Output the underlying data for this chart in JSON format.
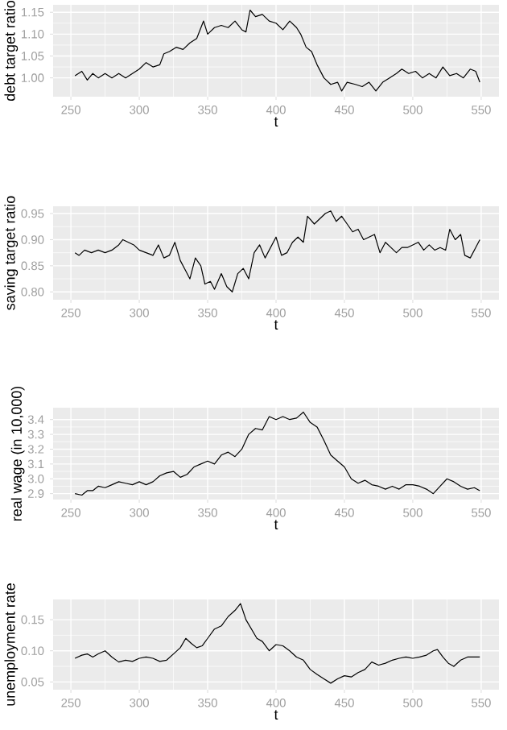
{
  "chart_data": [
    {
      "type": "line",
      "xlabel": "t",
      "ylabel": "debt target ratio",
      "grid": true,
      "marker": "none",
      "line_style": "solid",
      "xlim": [
        237,
        563
      ],
      "ylim": [
        0.957,
        1.167
      ],
      "xticks": [
        250,
        300,
        350,
        400,
        450,
        500,
        550
      ],
      "yticks": [
        {
          "value": 1.0,
          "label": "1.00"
        },
        1.05,
        {
          "value": 1.1,
          "label": "1.10"
        },
        1.15
      ],
      "series": [
        {
          "color": "#000000",
          "x": [
            253,
            258,
            262,
            266,
            270,
            275,
            280,
            285,
            290,
            295,
            300,
            305,
            310,
            315,
            318,
            322,
            327,
            332,
            337,
            342,
            347,
            350,
            355,
            360,
            365,
            370,
            375,
            378,
            381,
            385,
            390,
            395,
            400,
            405,
            410,
            415,
            418,
            422,
            426,
            430,
            435,
            440,
            445,
            448,
            452,
            458,
            463,
            468,
            473,
            478,
            483,
            488,
            492,
            497,
            502,
            507,
            512,
            517,
            522,
            527,
            532,
            537,
            542,
            546,
            549
          ],
          "values": [
            1.005,
            1.015,
            0.995,
            1.01,
            1.0,
            1.01,
            1.0,
            1.01,
            1.0,
            1.01,
            1.02,
            1.035,
            1.025,
            1.03,
            1.055,
            1.06,
            1.07,
            1.065,
            1.08,
            1.09,
            1.13,
            1.1,
            1.115,
            1.12,
            1.115,
            1.13,
            1.11,
            1.105,
            1.155,
            1.14,
            1.145,
            1.13,
            1.125,
            1.11,
            1.13,
            1.115,
            1.1,
            1.07,
            1.06,
            1.03,
            1.0,
            0.985,
            0.99,
            0.97,
            0.99,
            0.985,
            0.98,
            0.99,
            0.97,
            0.99,
            1.0,
            1.01,
            1.02,
            1.01,
            1.015,
            1.0,
            1.01,
            1.0,
            1.025,
            1.005,
            1.01,
            1.0,
            1.02,
            1.015,
            0.99
          ]
        }
      ]
    },
    {
      "type": "line",
      "xlabel": "t",
      "ylabel": "saving target ratio",
      "grid": true,
      "marker": "none",
      "line_style": "solid",
      "xlim": [
        237,
        563
      ],
      "ylim": [
        0.785,
        0.964
      ],
      "xticks": [
        250,
        300,
        350,
        400,
        450,
        500,
        550
      ],
      "yticks": [
        {
          "value": 0.8,
          "label": "0.80"
        },
        0.85,
        {
          "value": 0.9,
          "label": "0.90"
        },
        0.95
      ],
      "series": [
        {
          "color": "#000000",
          "x": [
            253,
            256,
            260,
            265,
            270,
            275,
            280,
            285,
            288,
            292,
            296,
            300,
            305,
            310,
            314,
            318,
            322,
            326,
            330,
            334,
            337,
            341,
            345,
            348,
            352,
            355,
            360,
            364,
            368,
            372,
            376,
            380,
            384,
            388,
            392,
            396,
            400,
            404,
            408,
            412,
            416,
            420,
            423,
            428,
            432,
            436,
            440,
            444,
            448,
            452,
            456,
            460,
            464,
            468,
            472,
            476,
            480,
            484,
            488,
            492,
            496,
            500,
            504,
            508,
            512,
            516,
            520,
            524,
            527,
            531,
            535,
            538,
            542,
            546,
            549
          ],
          "values": [
            0.875,
            0.87,
            0.88,
            0.875,
            0.88,
            0.875,
            0.88,
            0.89,
            0.9,
            0.895,
            0.89,
            0.88,
            0.875,
            0.87,
            0.89,
            0.865,
            0.87,
            0.895,
            0.86,
            0.84,
            0.825,
            0.865,
            0.85,
            0.815,
            0.82,
            0.805,
            0.835,
            0.81,
            0.8,
            0.835,
            0.845,
            0.825,
            0.875,
            0.89,
            0.865,
            0.885,
            0.905,
            0.87,
            0.875,
            0.895,
            0.905,
            0.895,
            0.945,
            0.93,
            0.94,
            0.95,
            0.955,
            0.935,
            0.945,
            0.93,
            0.915,
            0.92,
            0.9,
            0.905,
            0.91,
            0.875,
            0.895,
            0.885,
            0.875,
            0.885,
            0.885,
            0.89,
            0.895,
            0.88,
            0.89,
            0.88,
            0.885,
            0.88,
            0.92,
            0.9,
            0.91,
            0.87,
            0.865,
            0.885,
            0.9
          ]
        }
      ]
    },
    {
      "type": "line",
      "xlabel": "t",
      "ylabel": "real wage (in 10,000)",
      "grid": true,
      "marker": "none",
      "line_style": "solid",
      "xlim": [
        237,
        563
      ],
      "ylim": [
        2.86,
        3.48
      ],
      "xticks": [
        250,
        300,
        350,
        400,
        450,
        500,
        550
      ],
      "yticks": [
        2.9,
        {
          "value": 3.0,
          "label": "3.0"
        },
        3.1,
        3.2,
        3.3,
        3.4
      ],
      "series": [
        {
          "color": "#000000",
          "x": [
            253,
            258,
            262,
            266,
            270,
            275,
            280,
            285,
            290,
            295,
            300,
            305,
            310,
            315,
            320,
            325,
            330,
            335,
            340,
            345,
            350,
            355,
            360,
            365,
            370,
            375,
            380,
            385,
            390,
            395,
            400,
            405,
            410,
            415,
            420,
            425,
            430,
            435,
            440,
            445,
            450,
            455,
            460,
            465,
            470,
            475,
            480,
            485,
            490,
            495,
            500,
            505,
            510,
            515,
            520,
            525,
            530,
            535,
            540,
            545,
            549
          ],
          "values": [
            2.9,
            2.89,
            2.92,
            2.92,
            2.95,
            2.94,
            2.96,
            2.98,
            2.97,
            2.96,
            2.98,
            2.96,
            2.98,
            3.02,
            3.04,
            3.05,
            3.01,
            3.03,
            3.08,
            3.1,
            3.12,
            3.1,
            3.16,
            3.18,
            3.15,
            3.2,
            3.3,
            3.34,
            3.33,
            3.42,
            3.4,
            3.42,
            3.4,
            3.41,
            3.45,
            3.38,
            3.35,
            3.26,
            3.16,
            3.12,
            3.08,
            3.0,
            2.97,
            2.99,
            2.96,
            2.95,
            2.93,
            2.95,
            2.93,
            2.96,
            2.96,
            2.95,
            2.93,
            2.9,
            2.95,
            3.0,
            2.98,
            2.95,
            2.93,
            2.94,
            2.92
          ]
        }
      ]
    },
    {
      "type": "line",
      "xlabel": "t",
      "ylabel": "unemployment rate",
      "grid": true,
      "marker": "none",
      "line_style": "solid",
      "xlim": [
        237,
        563
      ],
      "ylim": [
        0.0375,
        0.1825
      ],
      "xticks": [
        250,
        300,
        350,
        400,
        450,
        500,
        550
      ],
      "yticks": [
        0.05,
        {
          "value": 0.1,
          "label": "0.10"
        },
        0.15
      ],
      "series": [
        {
          "color": "#000000",
          "x": [
            253,
            258,
            262,
            266,
            270,
            275,
            280,
            285,
            290,
            295,
            300,
            305,
            310,
            315,
            320,
            325,
            330,
            334,
            338,
            342,
            346,
            350,
            355,
            360,
            365,
            370,
            374,
            378,
            382,
            386,
            390,
            395,
            400,
            405,
            410,
            415,
            420,
            425,
            430,
            435,
            440,
            445,
            450,
            455,
            460,
            465,
            470,
            475,
            480,
            485,
            490,
            495,
            500,
            505,
            510,
            515,
            518,
            522,
            526,
            530,
            535,
            540,
            545,
            549
          ],
          "values": [
            0.088,
            0.093,
            0.095,
            0.09,
            0.095,
            0.1,
            0.09,
            0.082,
            0.085,
            0.083,
            0.088,
            0.09,
            0.088,
            0.083,
            0.085,
            0.095,
            0.105,
            0.12,
            0.112,
            0.105,
            0.108,
            0.12,
            0.135,
            0.14,
            0.155,
            0.165,
            0.176,
            0.15,
            0.135,
            0.12,
            0.115,
            0.1,
            0.11,
            0.108,
            0.1,
            0.09,
            0.085,
            0.07,
            0.062,
            0.055,
            0.048,
            0.055,
            0.06,
            0.058,
            0.065,
            0.07,
            0.082,
            0.077,
            0.08,
            0.085,
            0.088,
            0.09,
            0.088,
            0.09,
            0.093,
            0.1,
            0.102,
            0.09,
            0.08,
            0.075,
            0.085,
            0.09,
            0.09,
            0.09
          ]
        }
      ]
    }
  ]
}
